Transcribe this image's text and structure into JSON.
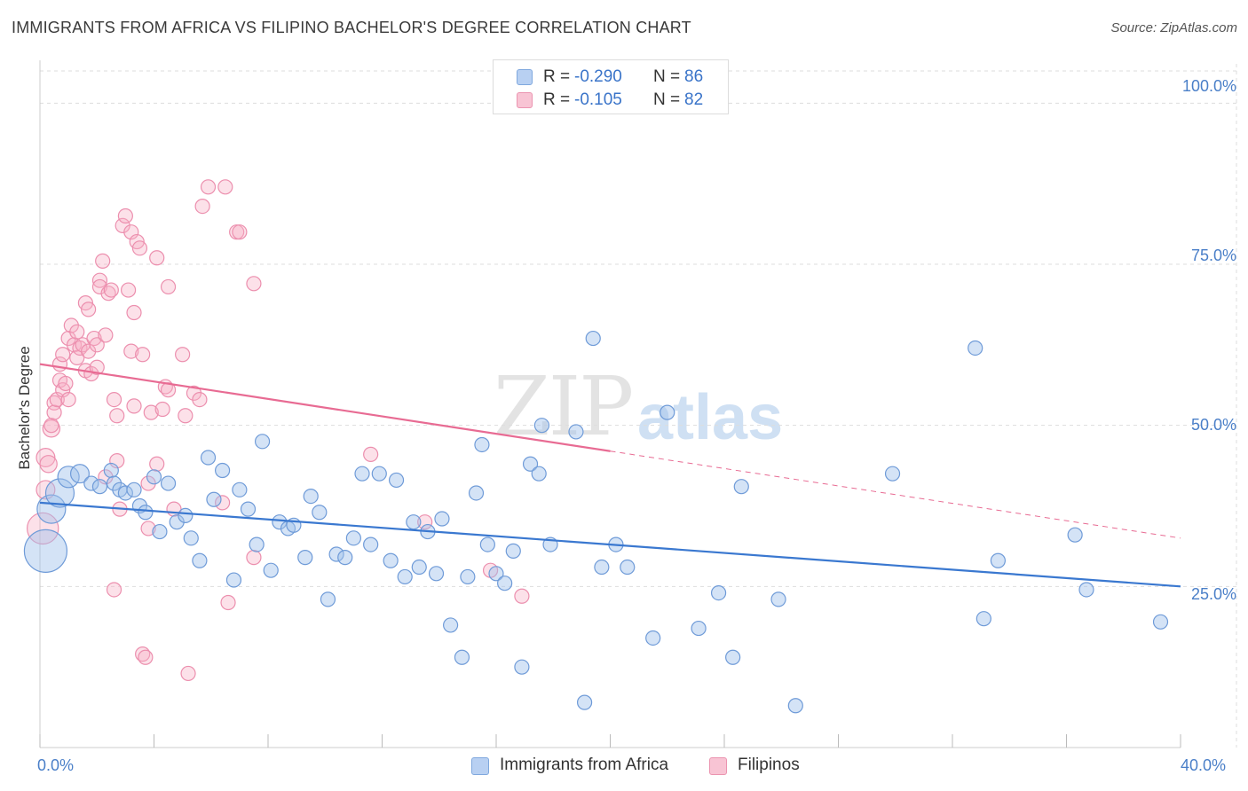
{
  "header": {
    "title": "IMMIGRANTS FROM AFRICA VS FILIPINO BACHELOR'S DEGREE CORRELATION CHART",
    "source": "Source: ZipAtlas.com"
  },
  "watermark": {
    "zip": "ZIP",
    "atlas": "atlas"
  },
  "legend": {
    "rows": [
      {
        "r_label": "R =",
        "r_value": "-0.290",
        "n_label": "N =",
        "n_value": "86",
        "color": "#b8d0f2",
        "border": "#7fa8de"
      },
      {
        "r_label": "R =",
        "r_value": "-0.105",
        "n_label": "N =",
        "n_value": "82",
        "color": "#f8c4d4",
        "border": "#eb94b0"
      }
    ]
  },
  "bottom_legend": [
    {
      "label": "Immigrants from Africa",
      "color": "#b8d0f2",
      "border": "#7fa8de"
    },
    {
      "label": "Filipinos",
      "color": "#f8c4d4",
      "border": "#eb94b0"
    }
  ],
  "colors": {
    "africa_fill": "rgba(160,192,235,0.45)",
    "africa_stroke": "#6f9bd8",
    "africa_line": "#3a78d0",
    "filipino_fill": "rgba(246,176,198,0.38)",
    "filipino_stroke": "#ec8fae",
    "filipino_line": "#e86b93",
    "grid": "#dddddd",
    "tick_text": "#4a7fc8"
  },
  "chart_data": {
    "type": "scatter",
    "title": "IMMIGRANTS FROM AFRICA VS FILIPINO BACHELOR'S DEGREE CORRELATION CHART",
    "xlabel": "",
    "ylabel": "Bachelor's Degree",
    "xlim": [
      0,
      40
    ],
    "ylim": [
      0,
      105
    ],
    "x_tick_labels": [
      "0.0%",
      "40.0%"
    ],
    "y_ticks": [
      25,
      50,
      75,
      100
    ],
    "y_tick_labels": [
      "25.0%",
      "50.0%",
      "75.0%",
      "100.0%"
    ],
    "grid": true,
    "legend_position": "top-center",
    "series": [
      {
        "name": "Immigrants from Africa",
        "r": -0.29,
        "n": 86,
        "trend": {
          "x": [
            0,
            40
          ],
          "y": [
            38.0,
            25.0
          ],
          "dashed_from": null
        },
        "points": [
          [
            0.2,
            30.5,
            3
          ],
          [
            0.4,
            37,
            2
          ],
          [
            0.7,
            39.5,
            2
          ],
          [
            1.0,
            42,
            1.5
          ],
          [
            1.4,
            42.5,
            1.3
          ],
          [
            1.8,
            41,
            1
          ],
          [
            2.1,
            40.5,
            1
          ],
          [
            2.5,
            43,
            1
          ],
          [
            2.6,
            41,
            1
          ],
          [
            2.8,
            40,
            1
          ],
          [
            3.0,
            39.5,
            1
          ],
          [
            3.3,
            40,
            1
          ],
          [
            3.5,
            37.5,
            1
          ],
          [
            3.7,
            36.5,
            1
          ],
          [
            4.0,
            42,
            1
          ],
          [
            4.2,
            33.5,
            1
          ],
          [
            4.5,
            41,
            1
          ],
          [
            4.8,
            35,
            1
          ],
          [
            5.1,
            36,
            1
          ],
          [
            5.3,
            32.5,
            1
          ],
          [
            5.6,
            29,
            1
          ],
          [
            5.9,
            45,
            1
          ],
          [
            6.1,
            38.5,
            1
          ],
          [
            6.4,
            43,
            1
          ],
          [
            6.8,
            26,
            1
          ],
          [
            7.0,
            40,
            1
          ],
          [
            7.3,
            37,
            1
          ],
          [
            7.6,
            31.5,
            1
          ],
          [
            7.8,
            47.5,
            1
          ],
          [
            8.1,
            27.5,
            1
          ],
          [
            8.4,
            35,
            1
          ],
          [
            8.7,
            34,
            1
          ],
          [
            8.9,
            34.5,
            1
          ],
          [
            9.3,
            29.5,
            1
          ],
          [
            9.5,
            39,
            1
          ],
          [
            9.8,
            36.5,
            1
          ],
          [
            10.1,
            23,
            1
          ],
          [
            10.4,
            30,
            1
          ],
          [
            10.7,
            29.5,
            1
          ],
          [
            11.0,
            32.5,
            1
          ],
          [
            11.3,
            42.5,
            1
          ],
          [
            11.6,
            31.5,
            1
          ],
          [
            11.9,
            42.5,
            1
          ],
          [
            12.3,
            29,
            1
          ],
          [
            12.5,
            41.5,
            1
          ],
          [
            12.8,
            26.5,
            1
          ],
          [
            13.1,
            35,
            1
          ],
          [
            13.3,
            28,
            1
          ],
          [
            13.6,
            33.5,
            1
          ],
          [
            13.9,
            27,
            1
          ],
          [
            14.1,
            35.5,
            1
          ],
          [
            14.4,
            19,
            1
          ],
          [
            14.8,
            14,
            1
          ],
          [
            15.0,
            26.5,
            1
          ],
          [
            15.3,
            39.5,
            1
          ],
          [
            15.5,
            47,
            1
          ],
          [
            15.7,
            31.5,
            1
          ],
          [
            16.0,
            27,
            1
          ],
          [
            16.3,
            25.5,
            1
          ],
          [
            16.6,
            30.5,
            1
          ],
          [
            16.9,
            12.5,
            1
          ],
          [
            17.2,
            44,
            1
          ],
          [
            17.5,
            42.5,
            1
          ],
          [
            17.6,
            50,
            1
          ],
          [
            17.9,
            31.5,
            1
          ],
          [
            18.8,
            49,
            1
          ],
          [
            19.1,
            7,
            1
          ],
          [
            19.4,
            63.5,
            1
          ],
          [
            19.7,
            28,
            1
          ],
          [
            20.2,
            31.5,
            1
          ],
          [
            20.6,
            28,
            1
          ],
          [
            21.5,
            17,
            1
          ],
          [
            22.0,
            52,
            1
          ],
          [
            23.1,
            18.5,
            1
          ],
          [
            23.8,
            24,
            1
          ],
          [
            24.3,
            14,
            1
          ],
          [
            24.6,
            40.5,
            1
          ],
          [
            25.9,
            23,
            1
          ],
          [
            26.5,
            6.5,
            1
          ],
          [
            29.9,
            42.5,
            1
          ],
          [
            32.8,
            62,
            1
          ],
          [
            33.1,
            20,
            1
          ],
          [
            33.6,
            29,
            1
          ],
          [
            36.3,
            33,
            1
          ],
          [
            36.7,
            24.5,
            1
          ],
          [
            39.3,
            19.5,
            1
          ]
        ]
      },
      {
        "name": "Filipinos",
        "r": -0.105,
        "n": 82,
        "trend": {
          "x": [
            0,
            40
          ],
          "y": [
            59.5,
            32.5
          ],
          "solid_until_x": 20.0
        },
        "points": [
          [
            0.1,
            34,
            2.2
          ],
          [
            0.2,
            40,
            1.3
          ],
          [
            0.2,
            45,
            1.3
          ],
          [
            0.3,
            44,
            1.2
          ],
          [
            0.4,
            49.5,
            1.2
          ],
          [
            0.4,
            50,
            1
          ],
          [
            0.5,
            53.5,
            1
          ],
          [
            0.5,
            52,
            1
          ],
          [
            0.6,
            54,
            1
          ],
          [
            0.7,
            57,
            1
          ],
          [
            0.7,
            59.5,
            1
          ],
          [
            0.8,
            55.5,
            1
          ],
          [
            0.8,
            61,
            1
          ],
          [
            0.9,
            56.5,
            1
          ],
          [
            1.0,
            54,
            1
          ],
          [
            1.0,
            63.5,
            1
          ],
          [
            1.1,
            65.5,
            1
          ],
          [
            1.2,
            62.5,
            1
          ],
          [
            1.3,
            60.5,
            1
          ],
          [
            1.3,
            64.5,
            1
          ],
          [
            1.4,
            62,
            1
          ],
          [
            1.5,
            62.5,
            1
          ],
          [
            1.6,
            58.5,
            1
          ],
          [
            1.6,
            69,
            1
          ],
          [
            1.7,
            61.5,
            1
          ],
          [
            1.7,
            68,
            1
          ],
          [
            1.8,
            58,
            1
          ],
          [
            1.9,
            63.5,
            1
          ],
          [
            2.0,
            59,
            1
          ],
          [
            2.0,
            62.5,
            1
          ],
          [
            2.1,
            72.5,
            1
          ],
          [
            2.1,
            71.5,
            1
          ],
          [
            2.2,
            75.5,
            1
          ],
          [
            2.3,
            64,
            1
          ],
          [
            2.3,
            42,
            1
          ],
          [
            2.4,
            70.5,
            1
          ],
          [
            2.5,
            71,
            1
          ],
          [
            2.6,
            54,
            1
          ],
          [
            2.6,
            24.5,
            1
          ],
          [
            2.7,
            51.5,
            1
          ],
          [
            2.7,
            44.5,
            1
          ],
          [
            2.8,
            37,
            1
          ],
          [
            2.9,
            81,
            1
          ],
          [
            3.0,
            82.5,
            1
          ],
          [
            3.1,
            71,
            1
          ],
          [
            3.2,
            80,
            1
          ],
          [
            3.2,
            61.5,
            1
          ],
          [
            3.3,
            67.5,
            1
          ],
          [
            3.3,
            53,
            1
          ],
          [
            3.4,
            78.5,
            1
          ],
          [
            3.5,
            77.5,
            1
          ],
          [
            3.6,
            61,
            1
          ],
          [
            3.6,
            14.5,
            1
          ],
          [
            3.7,
            14,
            1
          ],
          [
            3.8,
            41,
            1
          ],
          [
            3.8,
            34,
            1
          ],
          [
            3.9,
            52,
            1
          ],
          [
            4.1,
            76,
            1
          ],
          [
            4.1,
            44,
            1
          ],
          [
            4.3,
            52.5,
            1
          ],
          [
            4.4,
            56,
            1
          ],
          [
            4.5,
            71.5,
            1
          ],
          [
            4.5,
            55.5,
            1
          ],
          [
            4.7,
            37,
            1
          ],
          [
            5.0,
            61,
            1
          ],
          [
            5.1,
            51.5,
            1
          ],
          [
            5.2,
            11.5,
            1
          ],
          [
            5.4,
            55,
            1
          ],
          [
            5.6,
            54,
            1
          ],
          [
            5.7,
            84,
            1
          ],
          [
            5.9,
            87,
            1
          ],
          [
            6.4,
            38,
            1
          ],
          [
            6.5,
            87,
            1
          ],
          [
            6.6,
            22.5,
            1
          ],
          [
            6.9,
            80,
            1
          ],
          [
            7.0,
            80,
            1
          ],
          [
            7.5,
            72,
            1
          ],
          [
            7.5,
            29.5,
            1
          ],
          [
            11.6,
            45.5,
            1
          ],
          [
            13.5,
            35,
            1
          ],
          [
            15.8,
            27.5,
            1
          ],
          [
            16.9,
            23.5,
            1
          ]
        ]
      }
    ]
  }
}
